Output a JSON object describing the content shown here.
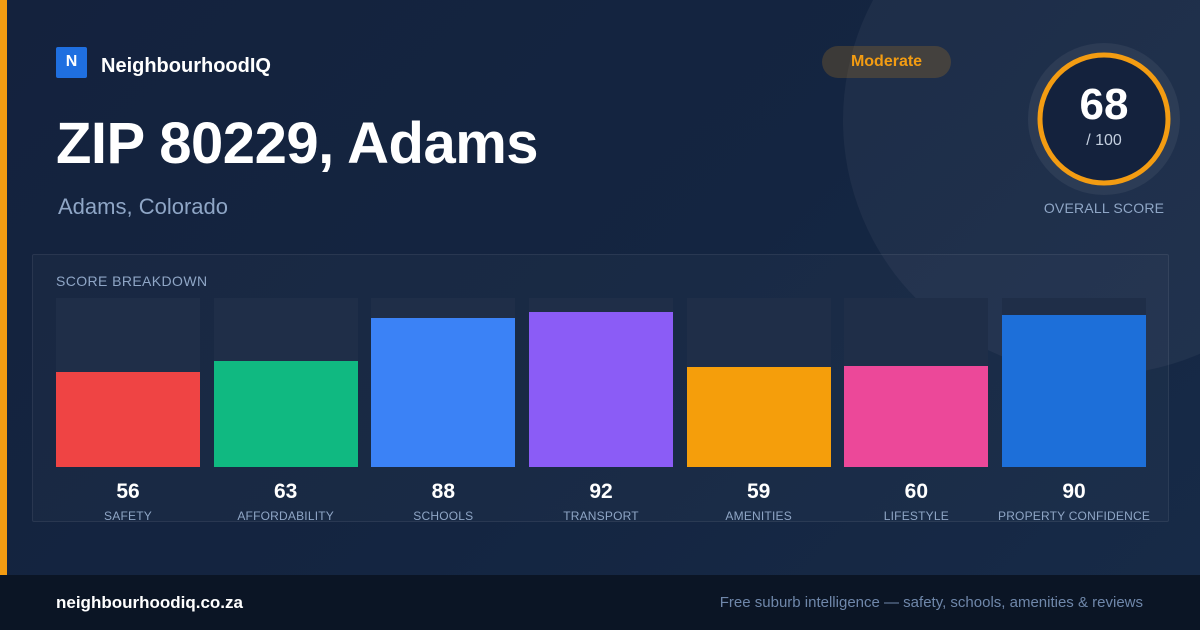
{
  "brand": {
    "logo_letter": "N",
    "name": "NeighbourhoodIQ"
  },
  "rating_badge": {
    "label": "Moderate",
    "color": "#f39c12"
  },
  "header": {
    "title": "ZIP 80229, Adams",
    "subtitle": "Adams, Colorado"
  },
  "overall_score": {
    "value": "68",
    "max_label": "/ 100",
    "label": "OVERALL SCORE",
    "score": 68,
    "max": 100,
    "ring_color": "#f39c12"
  },
  "breakdown": {
    "title": "SCORE BREAKDOWN",
    "items": [
      {
        "label": "SAFETY",
        "value": "56",
        "color": "#ef4444"
      },
      {
        "label": "AFFORDABILITY",
        "value": "63",
        "color": "#10b981"
      },
      {
        "label": "SCHOOLS",
        "value": "88",
        "color": "#3b82f6"
      },
      {
        "label": "TRANSPORT",
        "value": "92",
        "color": "#8b5cf6"
      },
      {
        "label": "AMENITIES",
        "value": "59",
        "color": "#f59e0b"
      },
      {
        "label": "LIFESTYLE",
        "value": "60",
        "color": "#ec4899"
      },
      {
        "label": "PROPERTY CONFIDENCE",
        "value": "90",
        "color": "#1d6fd9"
      }
    ]
  },
  "footer": {
    "site": "neighbourhoodiq.co.za",
    "tagline": "Free suburb intelligence — safety, schools, amenities & reviews"
  }
}
